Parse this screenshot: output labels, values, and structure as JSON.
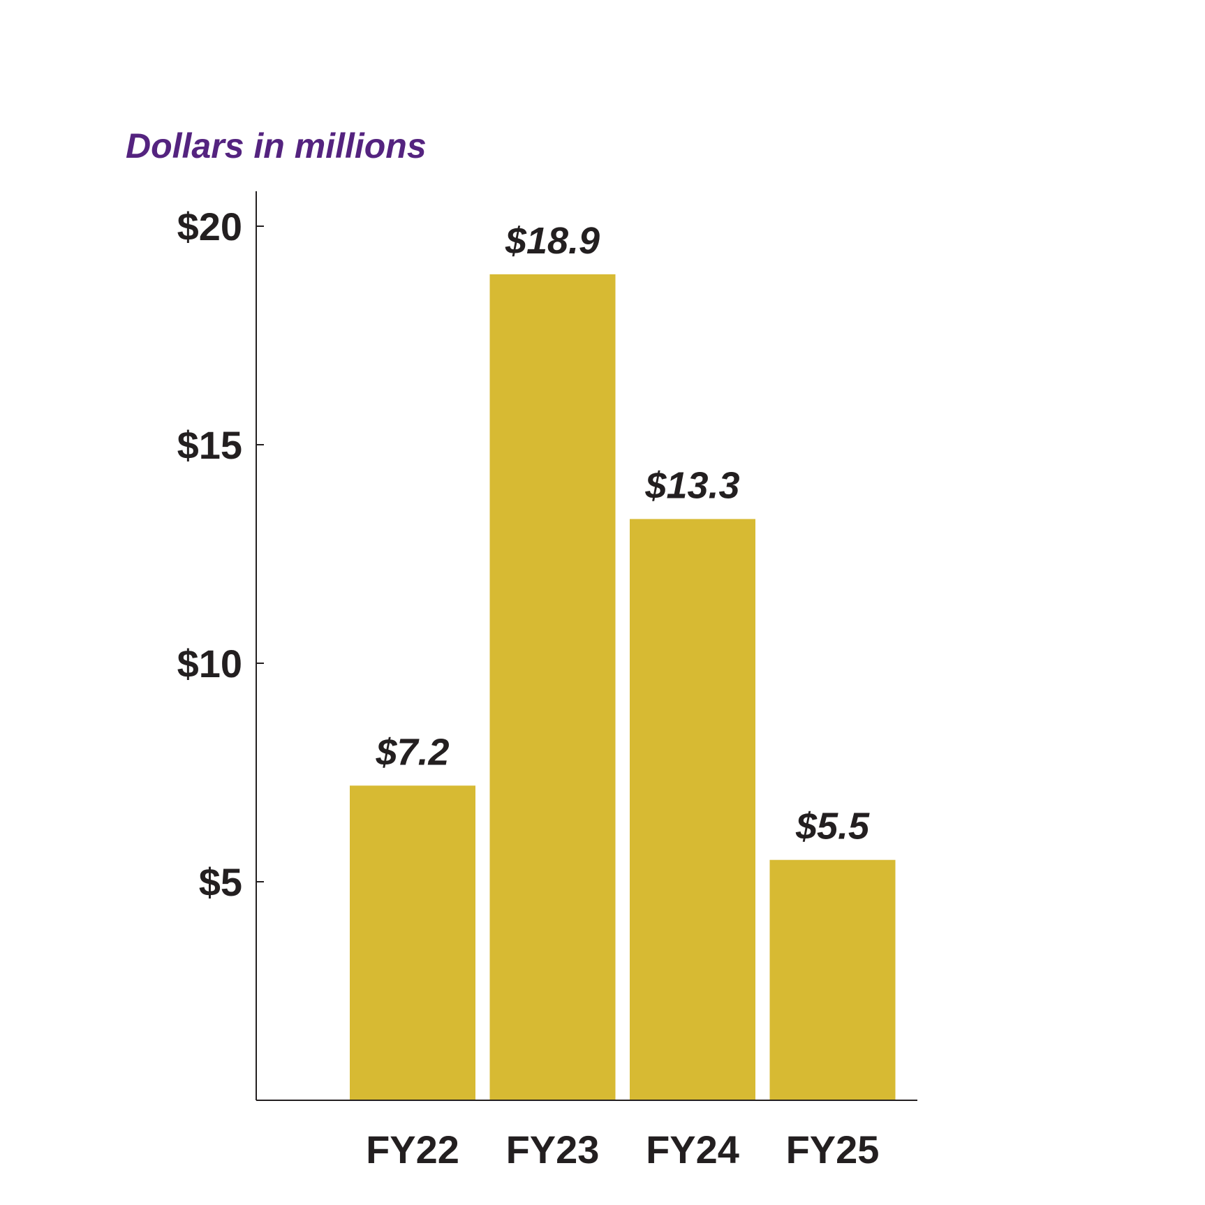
{
  "chart_data": {
    "type": "bar",
    "unit_label": "Dollars in millions",
    "categories": [
      "FY22",
      "FY23",
      "FY24",
      "FY25"
    ],
    "values": [
      7.2,
      18.9,
      13.3,
      5.5
    ],
    "value_labels": [
      "$7.2",
      "$18.9",
      "$13.3",
      "$5.5"
    ],
    "yticks": [
      {
        "value": 5,
        "label": "$5"
      },
      {
        "value": 10,
        "label": "$10"
      },
      {
        "value": 15,
        "label": "$15"
      },
      {
        "value": 20,
        "label": "$20"
      }
    ],
    "ylim": [
      0,
      20.8
    ],
    "grid": false,
    "legend": "none",
    "colors": {
      "bar": "#D7BA33",
      "unit_label": "#54237F",
      "text": "#231F20",
      "axis": "#231F20"
    }
  }
}
